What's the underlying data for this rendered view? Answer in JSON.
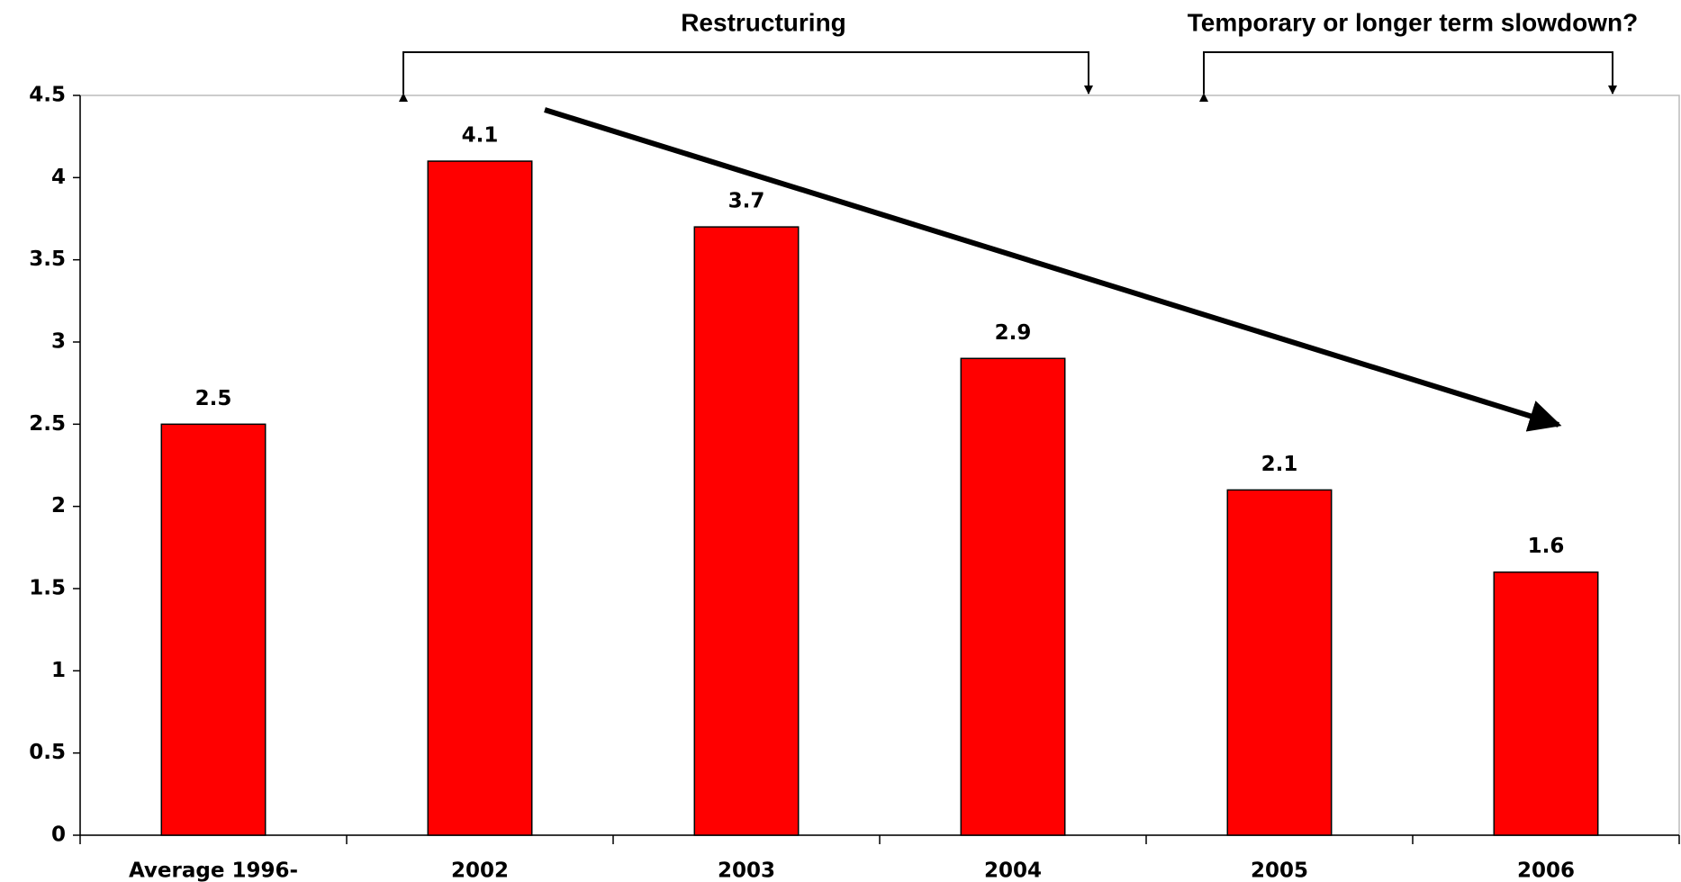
{
  "chart_data": {
    "type": "bar",
    "annotations": [
      "Restructuring",
      "Temporary or longer term slowdown?"
    ],
    "categories": [
      "Average 1996-",
      "2002",
      "2003",
      "2004",
      "2005",
      "2006"
    ],
    "values": [
      2.5,
      4.1,
      3.7,
      2.9,
      2.1,
      1.6
    ],
    "color": "#ff0000",
    "ylim": [
      0,
      4.5
    ],
    "yticks": [
      0,
      0.5,
      1,
      1.5,
      2,
      2.5,
      3,
      3.5,
      4,
      4.5
    ],
    "grid": false
  }
}
